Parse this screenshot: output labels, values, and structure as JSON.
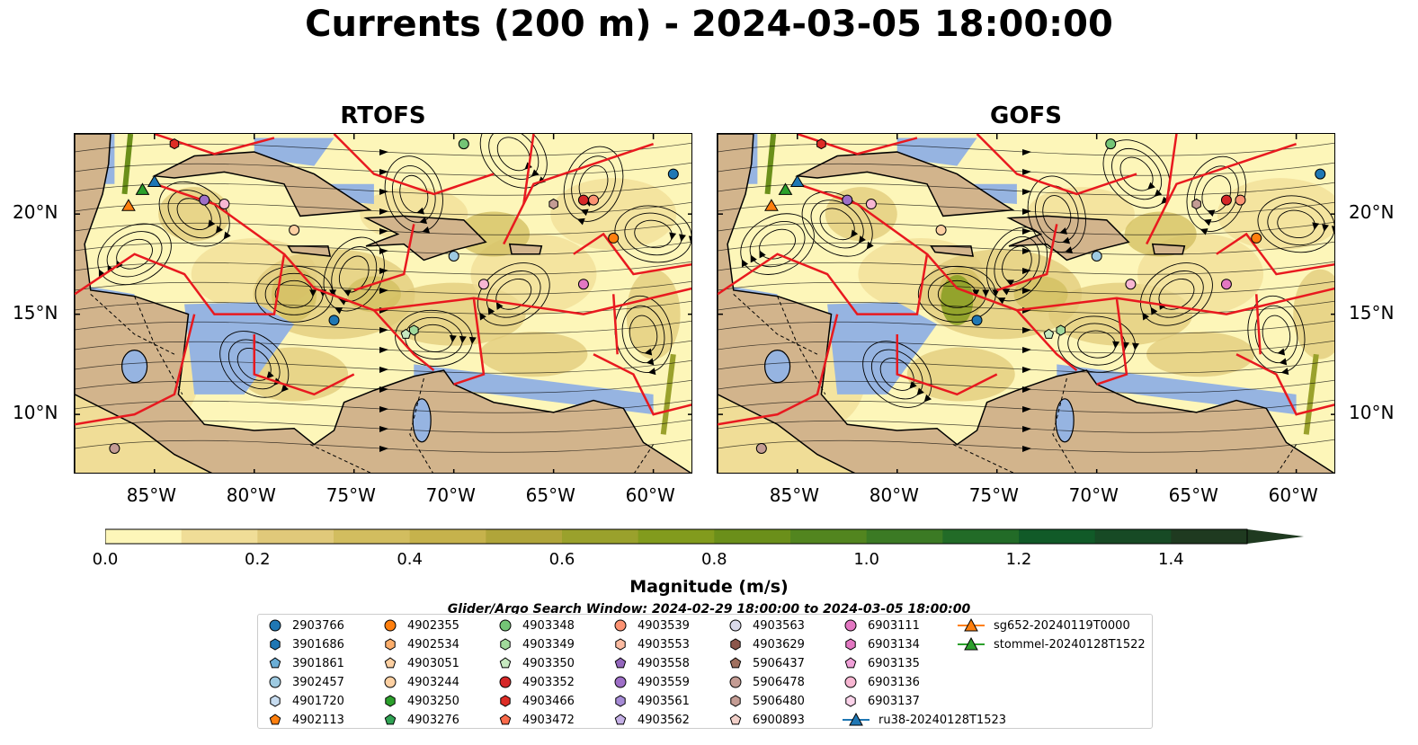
{
  "title": "Currents (200 m) - 2024-03-05 18:00:00",
  "panels": [
    {
      "key": "rtofs",
      "title": "RTOFS"
    },
    {
      "key": "gofs",
      "title": "GOFS"
    }
  ],
  "map": {
    "lon_range": [
      -89,
      -58
    ],
    "lat_range": [
      7,
      24
    ],
    "lon_ticks": [
      -85,
      -80,
      -75,
      -70,
      -65,
      -60
    ],
    "lon_tick_labels": [
      "85°W",
      "80°W",
      "75°W",
      "70°W",
      "65°W",
      "60°W"
    ],
    "lat_ticks": [
      10,
      15,
      20
    ],
    "lat_tick_labels": [
      "10°N",
      "15°N",
      "20°N"
    ]
  },
  "colorbar": {
    "label": "Magnitude (m/s)",
    "ticks": [
      0.0,
      0.2,
      0.4,
      0.6,
      0.8,
      1.0,
      1.2,
      1.4
    ],
    "tick_labels": [
      "0.0",
      "0.2",
      "0.4",
      "0.6",
      "0.8",
      "1.0",
      "1.2",
      "1.4"
    ],
    "min": 0.0,
    "max": 1.5,
    "step": 0.1,
    "colors": [
      "#fdf6b9",
      "#f0dd97",
      "#e0c97a",
      "#d2bd5f",
      "#c6b24c",
      "#b0a53a",
      "#9aa12c",
      "#829b1d",
      "#6b8f1a",
      "#52851f",
      "#3b7a24",
      "#226b27",
      "#115a28",
      "#174a25",
      "#1f3a20"
    ]
  },
  "search_window": "Glider/Argo Search Window: 2024-02-29 18:00:00 to 2024-03-05 18:00:00",
  "legend": [
    {
      "label": "2903766",
      "shape": "circle",
      "color": "#1f77b4"
    },
    {
      "label": "3901686",
      "shape": "hexagon",
      "color": "#1f77b4"
    },
    {
      "label": "3901861",
      "shape": "pentagon",
      "color": "#6baed6"
    },
    {
      "label": "3902457",
      "shape": "circle",
      "color": "#9ecae1"
    },
    {
      "label": "4901720",
      "shape": "hexagon",
      "color": "#c6dbef"
    },
    {
      "label": "4902113",
      "shape": "pentagon",
      "color": "#ff7f0e"
    },
    {
      "label": "4902355",
      "shape": "circle",
      "color": "#ff7f0e"
    },
    {
      "label": "4902534",
      "shape": "hexagon",
      "color": "#fdae6b"
    },
    {
      "label": "4903051",
      "shape": "pentagon",
      "color": "#fdd0a2"
    },
    {
      "label": "4903244",
      "shape": "circle",
      "color": "#fdd0a2"
    },
    {
      "label": "4903250",
      "shape": "hexagon",
      "color": "#2ca02c"
    },
    {
      "label": "4903276",
      "shape": "pentagon",
      "color": "#31a354"
    },
    {
      "label": "4903348",
      "shape": "circle",
      "color": "#74c476"
    },
    {
      "label": "4903349",
      "shape": "hexagon",
      "color": "#a1d99b"
    },
    {
      "label": "4903350",
      "shape": "pentagon",
      "color": "#c7e9c0"
    },
    {
      "label": "4903352",
      "shape": "circle",
      "color": "#d62728"
    },
    {
      "label": "4903466",
      "shape": "hexagon",
      "color": "#de2d26"
    },
    {
      "label": "4903472",
      "shape": "pentagon",
      "color": "#fb6a4a"
    },
    {
      "label": "4903539",
      "shape": "circle",
      "color": "#fc9272"
    },
    {
      "label": "4903553",
      "shape": "hexagon",
      "color": "#fcbba1"
    },
    {
      "label": "4903558",
      "shape": "pentagon",
      "color": "#9467bd"
    },
    {
      "label": "4903559",
      "shape": "circle",
      "color": "#9e6fc7"
    },
    {
      "label": "4903561",
      "shape": "hexagon",
      "color": "#a68bd6"
    },
    {
      "label": "4903562",
      "shape": "pentagon",
      "color": "#c5b0e6"
    },
    {
      "label": "4903563",
      "shape": "circle",
      "color": "#dadaeb"
    },
    {
      "label": "4903629",
      "shape": "hexagon",
      "color": "#8c564b"
    },
    {
      "label": "5906437",
      "shape": "pentagon",
      "color": "#a0705f"
    },
    {
      "label": "5906478",
      "shape": "circle",
      "color": "#c49c94"
    },
    {
      "label": "5906480",
      "shape": "hexagon",
      "color": "#c49c94"
    },
    {
      "label": "6900893",
      "shape": "pentagon",
      "color": "#f2d0c9"
    },
    {
      "label": "6903111",
      "shape": "circle",
      "color": "#e377c2"
    },
    {
      "label": "6903134",
      "shape": "hexagon",
      "color": "#e377c2"
    },
    {
      "label": "6903135",
      "shape": "pentagon",
      "color": "#f0a0d8"
    },
    {
      "label": "6903136",
      "shape": "circle",
      "color": "#f7b6d2"
    },
    {
      "label": "6903137",
      "shape": "hexagon",
      "color": "#fbd3ea"
    },
    {
      "label": "ru38-20240128T1523",
      "shape": "triangle-line",
      "color": "#1f77b4"
    },
    {
      "label": "sg652-20240119T0000",
      "shape": "triangle-line",
      "color": "#ff7f0e"
    },
    {
      "label": "stommel-20240128T1522",
      "shape": "triangle-line",
      "color": "#2ca02c"
    }
  ],
  "floats": [
    {
      "name": "2903766",
      "lon": -59,
      "lat": 22
    },
    {
      "name": "4902355",
      "lon": -62,
      "lat": 18.8
    },
    {
      "name": "4903348",
      "lon": -69.5,
      "lat": 23.5
    },
    {
      "name": "4903352",
      "lon": -63.5,
      "lat": 20.7
    },
    {
      "name": "4903539",
      "lon": -63.0,
      "lat": 20.7
    },
    {
      "name": "4903559",
      "lon": -82.5,
      "lat": 20.7
    },
    {
      "name": "6903136",
      "lon": -81.5,
      "lat": 20.5
    },
    {
      "name": "3902457",
      "lon": -70,
      "lat": 17.9
    },
    {
      "name": "4903244",
      "lon": -78,
      "lat": 19.2
    },
    {
      "name": "6903111",
      "lon": -63.5,
      "lat": 16.5
    },
    {
      "name": "6903136",
      "lon": -68.5,
      "lat": 16.5
    },
    {
      "name": "2903766",
      "lon": -76,
      "lat": 14.7
    },
    {
      "name": "4903349",
      "lon": -72,
      "lat": 14.2
    },
    {
      "name": "4903350",
      "lon": -72.4,
      "lat": 14.0
    },
    {
      "name": "5906478",
      "lon": -87,
      "lat": 8.3
    },
    {
      "name": "5906480",
      "lon": -65,
      "lat": 20.5
    },
    {
      "name": "4903466",
      "lon": -84,
      "lat": 23.5
    }
  ]
}
